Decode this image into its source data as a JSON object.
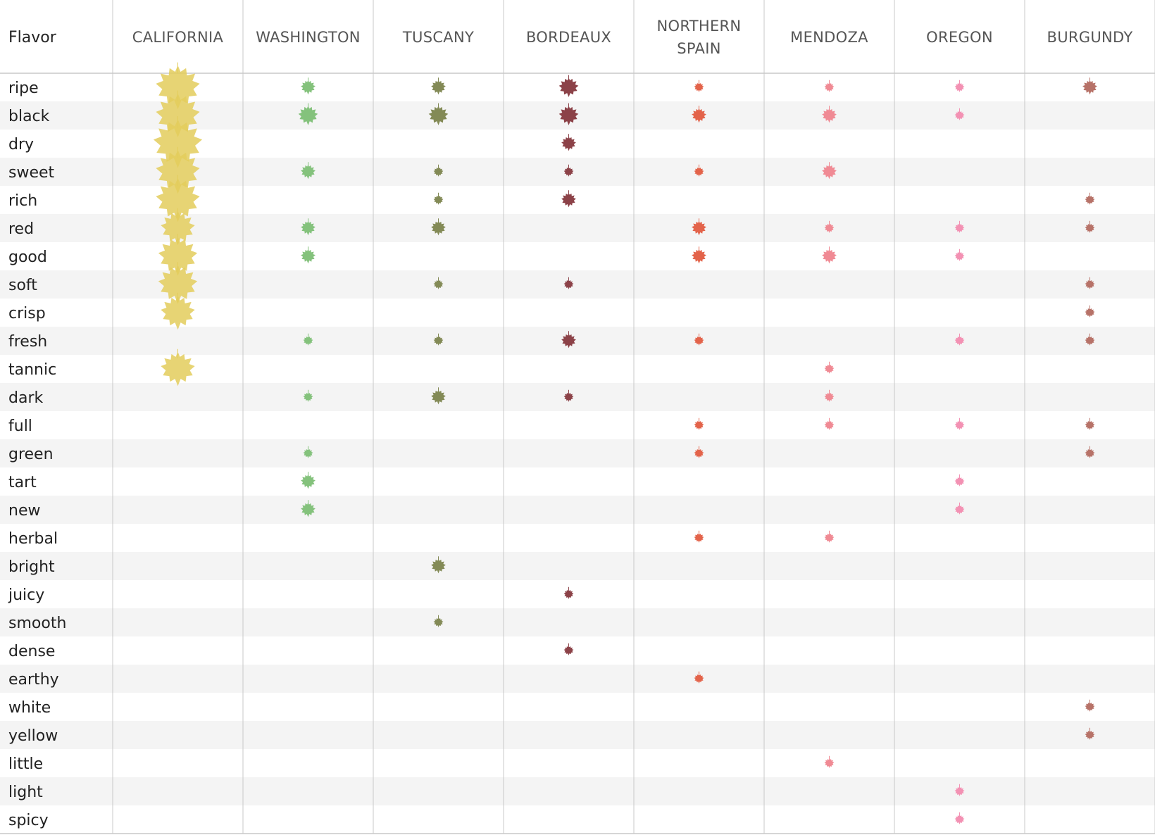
{
  "chart_data": {
    "type": "table",
    "title": "",
    "header_label": "Flavor",
    "columns": [
      {
        "key": "california",
        "label_lines": [
          "CALIFORNIA"
        ],
        "color": "#e3cd5c"
      },
      {
        "key": "washington",
        "label_lines": [
          "WASHINGTON"
        ],
        "color": "#84c27c"
      },
      {
        "key": "tuscany",
        "label_lines": [
          "TUSCANY"
        ],
        "color": "#838a56"
      },
      {
        "key": "bordeaux",
        "label_lines": [
          "BORDEAUX"
        ],
        "color": "#8c4248"
      },
      {
        "key": "northern_spain",
        "label_lines": [
          "NORTHERN",
          "SPAIN"
        ],
        "color": "#e3634a"
      },
      {
        "key": "mendoza",
        "label_lines": [
          "MENDOZA"
        ],
        "color": "#f08a94"
      },
      {
        "key": "oregon",
        "label_lines": [
          "OREGON"
        ],
        "color": "#f391b3"
      },
      {
        "key": "burgundy",
        "label_lines": [
          "BURGUNDY"
        ],
        "color": "#b77268"
      }
    ],
    "rows": [
      "ripe",
      "black",
      "dry",
      "sweet",
      "rich",
      "red",
      "good",
      "soft",
      "crisp",
      "fresh",
      "tannic",
      "dark",
      "full",
      "green",
      "tart",
      "new",
      "herbal",
      "bright",
      "juicy",
      "smooth",
      "dense",
      "earthy",
      "white",
      "yellow",
      "little",
      "light",
      "spicy"
    ],
    "value_scale": "relative leaf size, 0 = absent, 10 = largest",
    "values": [
      [
        9,
        3,
        3,
        4,
        2,
        2,
        2,
        3
      ],
      [
        9,
        4,
        4,
        4,
        3,
        3,
        2,
        0
      ],
      [
        10,
        0,
        0,
        3,
        0,
        0,
        0,
        0
      ],
      [
        9,
        3,
        2,
        2,
        2,
        3,
        0,
        0
      ],
      [
        9,
        0,
        2,
        3,
        0,
        0,
        0,
        2
      ],
      [
        7,
        3,
        3,
        0,
        3,
        2,
        2,
        2
      ],
      [
        8,
        3,
        0,
        0,
        3,
        3,
        2,
        0
      ],
      [
        8,
        0,
        2,
        2,
        0,
        0,
        0,
        2
      ],
      [
        7,
        0,
        0,
        0,
        0,
        0,
        0,
        2
      ],
      [
        0,
        2,
        2,
        3,
        2,
        0,
        2,
        2
      ],
      [
        7,
        0,
        0,
        0,
        0,
        2,
        0,
        0
      ],
      [
        0,
        2,
        3,
        2,
        0,
        2,
        0,
        0
      ],
      [
        0,
        0,
        0,
        0,
        2,
        2,
        2,
        2
      ],
      [
        0,
        2,
        0,
        0,
        2,
        0,
        0,
        2
      ],
      [
        0,
        3,
        0,
        0,
        0,
        0,
        2,
        0
      ],
      [
        0,
        3,
        0,
        0,
        0,
        0,
        2,
        0
      ],
      [
        0,
        0,
        0,
        0,
        2,
        2,
        0,
        0
      ],
      [
        0,
        0,
        3,
        0,
        0,
        0,
        0,
        0
      ],
      [
        0,
        0,
        0,
        2,
        0,
        0,
        0,
        0
      ],
      [
        0,
        0,
        2,
        0,
        0,
        0,
        0,
        0
      ],
      [
        0,
        0,
        0,
        2,
        0,
        0,
        0,
        0
      ],
      [
        0,
        0,
        0,
        0,
        2,
        0,
        0,
        0
      ],
      [
        0,
        0,
        0,
        0,
        0,
        0,
        0,
        2
      ],
      [
        0,
        0,
        0,
        0,
        0,
        0,
        0,
        2
      ],
      [
        0,
        0,
        0,
        0,
        0,
        2,
        0,
        0
      ],
      [
        0,
        0,
        0,
        0,
        0,
        0,
        2,
        0
      ],
      [
        0,
        0,
        0,
        0,
        0,
        0,
        2,
        0
      ]
    ],
    "grid": true,
    "stripe_color": "#f4f4f4",
    "grid_color": "#c8c8c8"
  }
}
